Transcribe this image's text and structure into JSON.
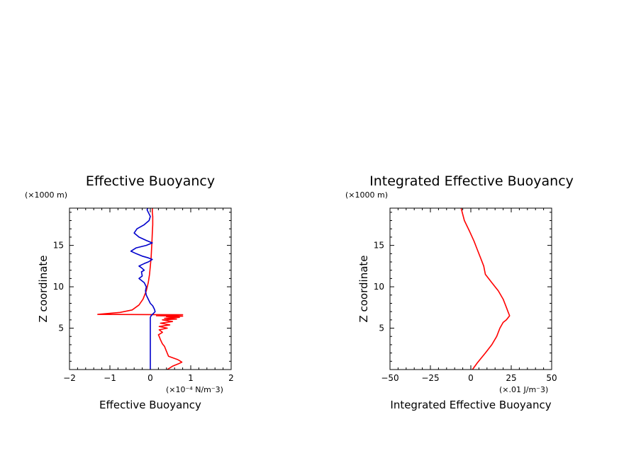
{
  "chart_data": [
    {
      "type": "line",
      "title": "Effective Buoyancy",
      "xlabel": "Effective Buoyancy",
      "ylabel": "Z coordinate",
      "x_unit_label": "(×10⁻⁴ N/m⁻3)",
      "y_unit_label": "(×1000 m)",
      "xlim": [
        -2,
        2
      ],
      "ylim": [
        0,
        19.5
      ],
      "x_ticks": [
        -2,
        -1,
        0,
        1,
        2
      ],
      "x_tick_labels": [
        "−2",
        "−1",
        "0",
        "1",
        "2"
      ],
      "y_ticks": [
        5,
        10,
        15
      ],
      "y_tick_labels": [
        "5",
        "10",
        "15"
      ],
      "grid": false,
      "series": [
        {
          "color": "#ff0000",
          "x": [
            0.42,
            0.55,
            0.7,
            0.78,
            0.68,
            0.45,
            0.4,
            0.35,
            0.3,
            0.25,
            0.22,
            0.2,
            0.3,
            0.22,
            0.42,
            0.22,
            0.48,
            0.25,
            0.55,
            0.3,
            0.65,
            0.35,
            0.72,
            0.4,
            0.8,
            0.15,
            0.6,
            0.7,
            0.8,
            0.1,
            -1.3,
            -0.75,
            -0.45,
            -0.28,
            -0.18,
            -0.1,
            -0.05,
            -0.02,
            0.0,
            0.02,
            0.03,
            0.04,
            0.05,
            0.06,
            0.06,
            0.06,
            0.05,
            0.05
          ],
          "y": [
            0.0,
            0.4,
            0.7,
            0.9,
            1.2,
            1.6,
            2.2,
            2.8,
            3.1,
            3.6,
            4.0,
            4.2,
            4.5,
            4.8,
            5.0,
            5.2,
            5.4,
            5.6,
            5.8,
            6.0,
            6.1,
            6.2,
            6.3,
            6.4,
            6.45,
            6.5,
            6.55,
            6.6,
            6.62,
            6.64,
            6.66,
            6.9,
            7.2,
            7.8,
            8.5,
            9.5,
            10.5,
            11.5,
            12.5,
            13.5,
            14.5,
            15.5,
            16.5,
            17.5,
            18.0,
            18.5,
            19.0,
            19.5
          ]
        },
        {
          "color": "#0000cc",
          "x": [
            0.0,
            0.0,
            0.0,
            0.0,
            0.02,
            0.08,
            0.12,
            0.1,
            0.06,
            0.0,
            -0.05,
            -0.1,
            -0.12,
            -0.1,
            -0.15,
            -0.28,
            -0.2,
            -0.22,
            -0.15,
            -0.22,
            -0.28,
            -0.15,
            -0.05,
            0.05,
            -0.05,
            -0.2,
            -0.35,
            -0.48,
            -0.35,
            -0.1,
            0.05,
            -0.1,
            -0.28,
            -0.4,
            -0.33,
            -0.15,
            -0.03,
            0.0,
            -0.05,
            -0.08,
            -0.06
          ],
          "y": [
            0.0,
            2.0,
            4.0,
            6.3,
            6.5,
            6.8,
            7.0,
            7.3,
            7.7,
            8.0,
            8.5,
            9.0,
            9.5,
            10.0,
            10.5,
            11.0,
            11.3,
            11.8,
            12.0,
            12.3,
            12.5,
            12.8,
            13.0,
            13.3,
            13.5,
            13.7,
            14.0,
            14.3,
            14.7,
            15.0,
            15.3,
            15.6,
            16.0,
            16.5,
            17.0,
            17.5,
            18.0,
            18.5,
            19.0,
            19.3,
            19.5
          ]
        }
      ]
    },
    {
      "type": "line",
      "title": "Integrated Effective Buoyancy",
      "xlabel": "Integrated Effective Buoyancy",
      "ylabel": "Z coordinate",
      "x_unit_label": "(×.01 J/m⁻3)",
      "y_unit_label": "(×1000 m)",
      "xlim": [
        -50,
        50
      ],
      "ylim": [
        0,
        19.5
      ],
      "x_ticks": [
        -50,
        -25,
        0,
        25,
        50
      ],
      "x_tick_labels": [
        "−50",
        "−25",
        "0",
        "25",
        "50"
      ],
      "y_ticks": [
        5,
        10,
        15
      ],
      "y_tick_labels": [
        "5",
        "10",
        "15"
      ],
      "grid": false,
      "series": [
        {
          "color": "#ff0000",
          "x": [
            1,
            4,
            9,
            13,
            16,
            18,
            20,
            22,
            24,
            23,
            22,
            20,
            17,
            13,
            9,
            8,
            6,
            4,
            2,
            -1,
            -4,
            -6
          ],
          "y": [
            0.0,
            0.8,
            2.0,
            3.0,
            4.0,
            5.0,
            5.7,
            6.0,
            6.5,
            7.0,
            7.5,
            8.5,
            9.5,
            10.5,
            11.5,
            12.5,
            13.5,
            14.5,
            15.5,
            16.8,
            18.0,
            19.5
          ]
        }
      ]
    }
  ]
}
